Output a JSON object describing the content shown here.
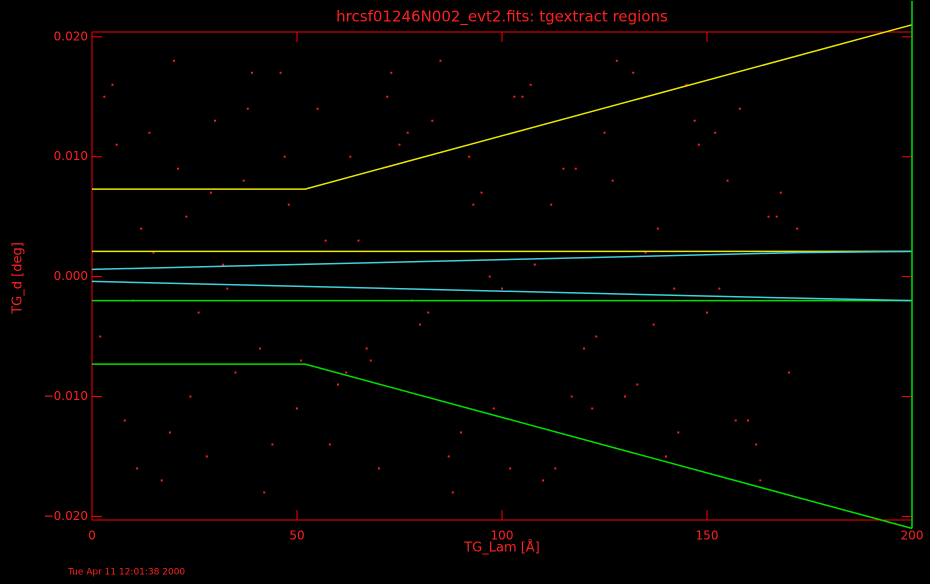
{
  "chart_data": {
    "type": "scatter",
    "title": "hrcsf01246N002_evt2.fits:  tgextract regions",
    "x_label": "TG_Lam [Å]",
    "y_label": "TG_d [deg]",
    "timestamp": "Tue Apr 11 12:01:38 2000",
    "xlim": [
      0,
      200
    ],
    "ylim": [
      -0.0203,
      0.0204
    ],
    "xticks": [
      0,
      50,
      100,
      150,
      200
    ],
    "yticks": [
      {
        "value": -0.02,
        "label": "−0.020"
      },
      {
        "value": -0.01,
        "label": "−0.010"
      },
      {
        "value": 0,
        "label": "0.000"
      },
      {
        "value": 0.01,
        "label": "0.010"
      },
      {
        "value": 0.02,
        "label": "0.020"
      }
    ],
    "axis_color": "#ff0000",
    "series": [
      {
        "type": "scatter",
        "color": "#ff1a1a",
        "x": [
          3,
          8,
          12,
          17,
          21,
          26,
          30,
          35,
          39,
          44,
          48,
          2,
          6,
          11,
          15,
          20,
          24,
          29,
          33,
          38,
          42,
          47,
          51,
          5,
          10,
          14,
          19,
          23,
          28,
          32,
          37,
          41,
          46,
          50,
          55,
          60,
          65,
          70,
          75,
          80,
          85,
          90,
          95,
          100,
          105,
          110,
          115,
          120,
          125,
          130,
          135,
          140,
          145,
          150,
          155,
          160,
          165,
          170,
          58,
          63,
          68,
          73,
          78,
          83,
          88,
          93,
          98,
          103,
          108,
          113,
          118,
          123,
          128,
          133,
          138,
          143,
          148,
          153,
          158,
          163,
          168,
          57,
          67,
          77,
          87,
          97,
          107,
          117,
          127,
          137,
          147,
          157,
          167,
          62,
          72,
          82,
          92,
          102,
          112,
          122,
          132,
          142,
          152,
          162,
          172
        ],
        "y": [
          0.015,
          -0.012,
          0.004,
          -0.017,
          0.009,
          -0.003,
          0.013,
          -0.008,
          0.017,
          -0.014,
          0.006,
          -0.005,
          0.011,
          -0.016,
          0.002,
          0.018,
          -0.01,
          0.007,
          -0.001,
          0.014,
          -0.018,
          0.01,
          -0.007,
          0.016,
          -0.002,
          0.012,
          -0.013,
          0.005,
          -0.015,
          0.001,
          0.008,
          -0.006,
          0.017,
          -0.011,
          0.014,
          -0.009,
          0.003,
          -0.016,
          0.011,
          -0.004,
          0.018,
          -0.013,
          0.007,
          -0.001,
          0.015,
          -0.017,
          0.009,
          -0.006,
          0.012,
          -0.01,
          0.002,
          -0.015,
          0.016,
          -0.003,
          0.008,
          -0.012,
          0.005,
          -0.008,
          -0.014,
          0.01,
          -0.007,
          0.017,
          -0.002,
          0.013,
          -0.018,
          0.006,
          -0.011,
          0.015,
          0.001,
          -0.016,
          0.009,
          -0.005,
          0.018,
          -0.009,
          0.004,
          -0.013,
          0.011,
          -0.001,
          0.014,
          -0.017,
          0.007,
          0.003,
          -0.006,
          0.012,
          -0.015,
          0,
          0.016,
          -0.01,
          0.008,
          -0.004,
          0.013,
          -0.012,
          0.005,
          -0.008,
          0.015,
          -0.003,
          0.01,
          -0.016,
          0.006,
          -0.011,
          0.017,
          -0.001,
          0.012,
          -0.014,
          0.004
        ]
      },
      {
        "type": "line",
        "color": "#e8e800",
        "x": [
          0,
          52,
          200
        ],
        "y": [
          0.0073,
          0.0073,
          0.021
        ]
      },
      {
        "type": "line",
        "color": "#00e000",
        "x": [
          0,
          52,
          200
        ],
        "y": [
          -0.0073,
          -0.0073,
          -0.021
        ]
      },
      {
        "type": "line",
        "color": "#e8e800",
        "x": [
          0,
          200
        ],
        "y": [
          0.0021,
          0.0021
        ]
      },
      {
        "type": "line",
        "color": "#00e000",
        "x": [
          0,
          200
        ],
        "y": [
          -0.002,
          -0.002
        ]
      },
      {
        "type": "line",
        "color": "#40d0e0",
        "x": [
          0,
          172,
          200
        ],
        "y": [
          0.0006,
          0.002,
          0.0021
        ]
      },
      {
        "type": "line",
        "color": "#40d0e0",
        "x": [
          0,
          172,
          200
        ],
        "y": [
          -0.0004,
          -0.0018,
          -0.002
        ]
      },
      {
        "type": "line",
        "color": "#00e000",
        "x": [
          200,
          200
        ],
        "y": [
          -0.021,
          0.023
        ]
      }
    ]
  }
}
